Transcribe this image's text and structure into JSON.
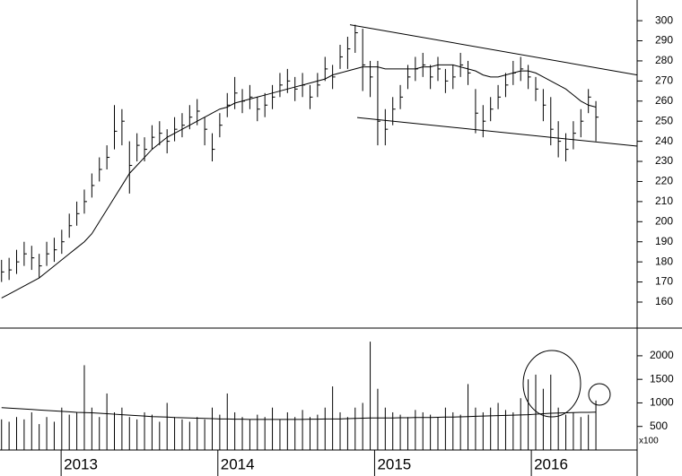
{
  "chart_data": [
    {
      "type": "ohlc",
      "x": [
        2012.62,
        2012.668,
        2012.716,
        2012.764,
        2012.812,
        2012.86,
        2012.908,
        2012.956,
        2013.004,
        2013.052,
        2013.1,
        2013.148,
        2013.196,
        2013.244,
        2013.292,
        2013.34,
        2013.388,
        2013.436,
        2013.484,
        2013.532,
        2013.58,
        2013.628,
        2013.676,
        2013.724,
        2013.772,
        2013.82,
        2013.868,
        2013.916,
        2013.964,
        2014.012,
        2014.06,
        2014.108,
        2014.156,
        2014.204,
        2014.252,
        2014.3,
        2014.348,
        2014.396,
        2014.444,
        2014.492,
        2014.54,
        2014.588,
        2014.636,
        2014.684,
        2014.732,
        2014.78,
        2014.828,
        2014.876,
        2014.924,
        2014.972,
        2015.02,
        2015.068,
        2015.116,
        2015.164,
        2015.212,
        2015.26,
        2015.308,
        2015.356,
        2015.404,
        2015.452,
        2015.5,
        2015.548,
        2015.596,
        2015.644,
        2015.692,
        2015.74,
        2015.788,
        2015.836,
        2015.884,
        2015.932,
        2015.98,
        2016.028,
        2016.076,
        2016.124,
        2016.172,
        2016.22,
        2016.268,
        2016.316,
        2016.364,
        2016.412
      ],
      "high": [
        181,
        182,
        186,
        190,
        188,
        184,
        190,
        192,
        196,
        204,
        210,
        216,
        224,
        232,
        238,
        258,
        256,
        240,
        244,
        242,
        248,
        250,
        246,
        252,
        254,
        258,
        261,
        252,
        244,
        254,
        264,
        272,
        266,
        268,
        262,
        264,
        268,
        274,
        276,
        272,
        274,
        268,
        274,
        282,
        278,
        288,
        292,
        298,
        296,
        280,
        280,
        256,
        262,
        268,
        278,
        282,
        284,
        278,
        282,
        276,
        278,
        284,
        280,
        266,
        258,
        262,
        268,
        274,
        280,
        282,
        278,
        272,
        266,
        262,
        250,
        244,
        250,
        256,
        266,
        260
      ],
      "low": [
        170,
        171,
        174,
        178,
        176,
        172,
        178,
        180,
        184,
        192,
        198,
        204,
        212,
        220,
        226,
        236,
        238,
        214,
        230,
        230,
        236,
        238,
        234,
        240,
        242,
        246,
        248,
        238,
        230,
        242,
        252,
        256,
        254,
        256,
        250,
        252,
        256,
        262,
        264,
        260,
        262,
        256,
        262,
        270,
        266,
        276,
        276,
        284,
        265,
        262,
        238,
        238,
        248,
        256,
        266,
        270,
        272,
        266,
        270,
        264,
        266,
        272,
        268,
        244,
        242,
        250,
        256,
        262,
        268,
        270,
        266,
        260,
        250,
        238,
        232,
        230,
        236,
        242,
        254,
        240
      ],
      "close": [
        175,
        176,
        180,
        184,
        182,
        178,
        184,
        186,
        190,
        198,
        204,
        210,
        218,
        226,
        232,
        245,
        250,
        228,
        238,
        236,
        242,
        244,
        240,
        246,
        248,
        252,
        255,
        246,
        236,
        248,
        258,
        264,
        260,
        262,
        256,
        258,
        262,
        268,
        270,
        266,
        268,
        262,
        268,
        276,
        272,
        282,
        286,
        294,
        278,
        272,
        250,
        246,
        256,
        262,
        272,
        276,
        278,
        272,
        276,
        270,
        272,
        278,
        274,
        254,
        250,
        256,
        262,
        268,
        274,
        276,
        272,
        266,
        258,
        246,
        240,
        236,
        244,
        250,
        262,
        252
      ],
      "moving_average": [
        162,
        164,
        166,
        168,
        170,
        172,
        175,
        178,
        181,
        184,
        187,
        190,
        194,
        200,
        206,
        212,
        218,
        224,
        228,
        232,
        236,
        239,
        242,
        244,
        246,
        248,
        250,
        252,
        254,
        256,
        257,
        259,
        260,
        261,
        262,
        263,
        264,
        265,
        266,
        267,
        268,
        269,
        270,
        271,
        273,
        274,
        275,
        276,
        277,
        277,
        277,
        276,
        276,
        276,
        276,
        276,
        277,
        277,
        278,
        278,
        278,
        277,
        276,
        275,
        273,
        272,
        272,
        273,
        274,
        275,
        275,
        274,
        272,
        270,
        268,
        266,
        263,
        260,
        258,
        257
      ],
      "trendlines": [
        {
          "x": [
            2014.843,
            2016.675
          ],
          "y": [
            298,
            273
          ]
        },
        {
          "x": [
            2014.889,
            2016.675
          ],
          "y": [
            251.8,
            237.6
          ]
        }
      ],
      "color": "#000000",
      "xlim": [
        2012.61,
        2016.675
      ],
      "ylim": [
        147.5,
        310.3
      ],
      "yticks": [
        160,
        170,
        180,
        190,
        200,
        210,
        220,
        230,
        240,
        250,
        260,
        270,
        280,
        290,
        300
      ]
    },
    {
      "type": "volume",
      "x": [
        2012.62,
        2012.668,
        2012.716,
        2012.764,
        2012.812,
        2012.86,
        2012.908,
        2012.956,
        2013.004,
        2013.052,
        2013.1,
        2013.148,
        2013.196,
        2013.244,
        2013.292,
        2013.34,
        2013.388,
        2013.436,
        2013.484,
        2013.532,
        2013.58,
        2013.628,
        2013.676,
        2013.724,
        2013.772,
        2013.82,
        2013.868,
        2013.916,
        2013.964,
        2014.012,
        2014.06,
        2014.108,
        2014.156,
        2014.204,
        2014.252,
        2014.3,
        2014.348,
        2014.396,
        2014.444,
        2014.492,
        2014.54,
        2014.588,
        2014.636,
        2014.684,
        2014.732,
        2014.78,
        2014.828,
        2014.876,
        2014.924,
        2014.972,
        2015.02,
        2015.068,
        2015.116,
        2015.164,
        2015.212,
        2015.26,
        2015.308,
        2015.356,
        2015.404,
        2015.452,
        2015.5,
        2015.548,
        2015.596,
        2015.644,
        2015.692,
        2015.74,
        2015.788,
        2015.836,
        2015.884,
        2015.932,
        2015.98,
        2016.028,
        2016.076,
        2016.124,
        2016.172,
        2016.22,
        2016.268,
        2016.316,
        2016.364,
        2016.412
      ],
      "values": [
        650,
        600,
        700,
        650,
        800,
        550,
        700,
        600,
        900,
        750,
        800,
        1800,
        900,
        700,
        1200,
        800,
        900,
        700,
        650,
        800,
        750,
        600,
        1000,
        700,
        650,
        600,
        700,
        650,
        900,
        750,
        1200,
        800,
        700,
        650,
        750,
        700,
        900,
        650,
        800,
        700,
        850,
        700,
        750,
        900,
        1350,
        800,
        700,
        900,
        1000,
        2300,
        1300,
        900,
        800,
        750,
        700,
        850,
        800,
        750,
        700,
        900,
        800,
        750,
        1400,
        900,
        800,
        900,
        1000,
        850,
        800,
        1100,
        1500,
        1600,
        1300,
        1600,
        900,
        750,
        800,
        700,
        750,
        1050
      ],
      "moving_average": [
        900,
        890,
        880,
        870,
        860,
        850,
        840,
        830,
        820,
        810,
        800,
        795,
        790,
        780,
        770,
        760,
        750,
        740,
        730,
        720,
        710,
        705,
        700,
        690,
        685,
        680,
        675,
        670,
        665,
        660,
        660,
        655,
        655,
        650,
        650,
        650,
        650,
        650,
        650,
        650,
        650,
        655,
        655,
        660,
        660,
        660,
        665,
        670,
        675,
        680,
        680,
        680,
        680,
        685,
        685,
        690,
        690,
        690,
        695,
        700,
        700,
        705,
        710,
        715,
        720,
        725,
        730,
        735,
        740,
        745,
        750,
        760,
        770,
        780,
        785,
        790,
        795,
        800,
        800,
        805
      ],
      "color": "#000000",
      "unit_label": "x100",
      "xlim": [
        2012.61,
        2016.675
      ],
      "ylim": [
        0,
        2569
      ],
      "yticks": [
        500,
        1000,
        1500,
        2000
      ],
      "xticks": [
        2013,
        2014,
        2015,
        2016
      ]
    }
  ]
}
